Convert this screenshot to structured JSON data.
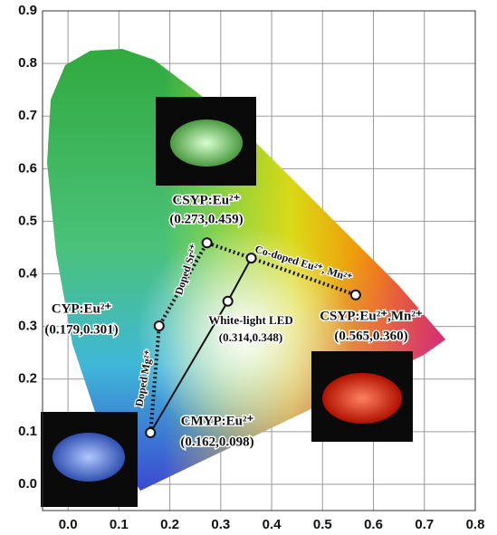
{
  "chart_data": {
    "type": "scatter",
    "xlim": [
      -0.05,
      0.8
    ],
    "ylim": [
      -0.05,
      0.9
    ],
    "xticks": [
      {
        "value": 0,
        "label": "0.0"
      },
      0.1,
      0.2,
      0.3,
      0.4,
      0.5,
      0.6,
      0.7,
      0.8
    ],
    "yticks": [
      {
        "value": 0,
        "label": "0.0"
      },
      0.1,
      0.2,
      0.3,
      0.4,
      0.5,
      0.6,
      0.7,
      0.8,
      0.9
    ],
    "grid": true,
    "points": [
      {
        "name": "CYP:Eu²⁺",
        "x": 0.179,
        "y": 0.301,
        "label": "(0.179,0.301)"
      },
      {
        "name": "CSYP:Eu²⁺",
        "x": 0.273,
        "y": 0.459,
        "label": "(0.273,0.459)"
      },
      {
        "name": "CSYP:Eu²⁺,Mn²⁺",
        "x": 0.565,
        "y": 0.36,
        "label": "(0.565,0.360)"
      },
      {
        "name": "CMYP:Eu²⁺",
        "x": 0.162,
        "y": 0.098,
        "label": "(0.162,0.098)"
      },
      {
        "name": "White-light LED",
        "x": 0.314,
        "y": 0.348,
        "label": "(0.314,0.348)"
      },
      {
        "x": 0.36,
        "y": 0.43
      }
    ],
    "annotations": [
      "Doped Mg²⁺",
      "Doped Sr²⁺",
      "Co-doped Eu²⁺, Mn²⁺"
    ]
  }
}
